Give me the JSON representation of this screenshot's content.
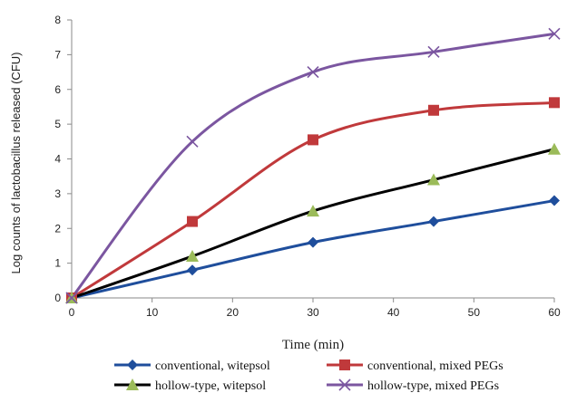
{
  "chart_data": {
    "type": "line",
    "title": "",
    "xlabel": "Time (min)",
    "ylabel": "Log counts of lactobacillus released (CFU)",
    "x": [
      0,
      15,
      30,
      45,
      60
    ],
    "xlim": [
      0,
      60
    ],
    "ylim": [
      0,
      8
    ],
    "xticks": [
      0,
      10,
      20,
      30,
      40,
      50,
      60
    ],
    "yticks": [
      0,
      1,
      2,
      3,
      4,
      5,
      6,
      7,
      8
    ],
    "grid": false,
    "smooth": true,
    "legend_position": "bottom",
    "series": [
      {
        "name": "conventional, witepsol",
        "values": [
          0,
          0.8,
          1.6,
          2.2,
          2.8
        ],
        "color": "#1f4e9c",
        "marker": "diamond"
      },
      {
        "name": "conventional, mixed PEGs",
        "values": [
          0,
          2.2,
          4.55,
          5.4,
          5.62
        ],
        "color": "#c0393b",
        "marker": "square"
      },
      {
        "name": "hollow-type, witepsol",
        "values": [
          0,
          1.2,
          2.5,
          3.4,
          4.28
        ],
        "color": "#000000",
        "marker": "triangle",
        "marker_color": "#9bbb59"
      },
      {
        "name": "hollow-type, mixed PEGs",
        "values": [
          0,
          4.5,
          6.5,
          7.08,
          7.6
        ],
        "color": "#7b56a0",
        "marker": "x"
      }
    ]
  }
}
